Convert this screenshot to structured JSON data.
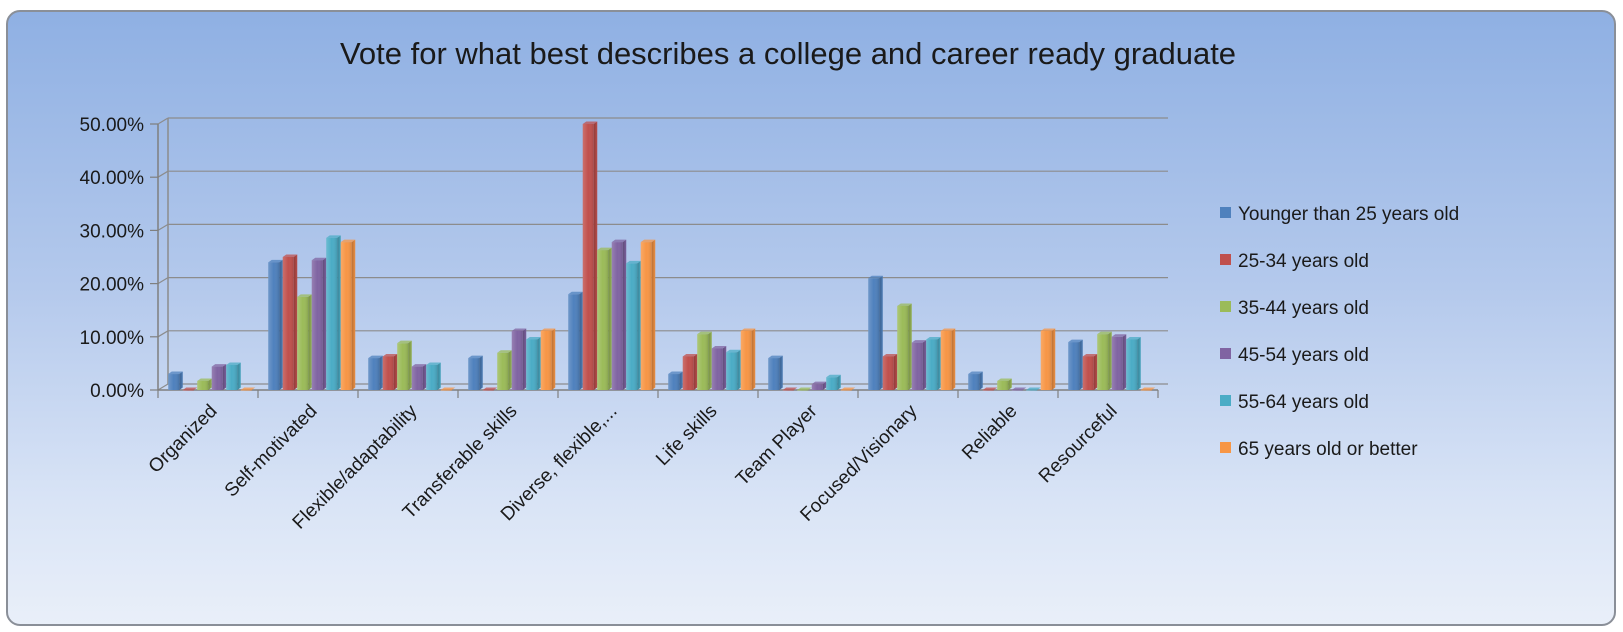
{
  "chart_data": {
    "type": "bar",
    "title": "Vote for what best describes a college and career ready graduate",
    "xlabel": "",
    "ylabel": "",
    "ylim": [
      0,
      0.5
    ],
    "yticks": [
      {
        "value": 0.0,
        "label": "0.00%"
      },
      {
        "value": 0.1,
        "label": "10.00%"
      },
      {
        "value": 0.2,
        "label": "20.00%"
      },
      {
        "value": 0.3,
        "label": "30.00%"
      },
      {
        "value": 0.4,
        "label": "40.00%"
      },
      {
        "value": 0.5,
        "label": "50.00%"
      }
    ],
    "grid": true,
    "legend_position": "right",
    "categories": [
      "Organized",
      "Self-motivated",
      "Flexible/adaptability",
      "Transferable skills",
      "Diverse, flexible,...",
      "Life skills",
      "Team Player",
      "Focused/Visionary",
      "Reliable",
      "Resourceful"
    ],
    "series": [
      {
        "name": "Younger than 25 years old",
        "color": "#4f81bd",
        "values": [
          0.03,
          0.24,
          0.06,
          0.06,
          0.18,
          0.03,
          0.06,
          0.21,
          0.03,
          0.09
        ]
      },
      {
        "name": "25-34 years old",
        "color": "#c0504d",
        "values": [
          0.0,
          0.25,
          0.063,
          0.0,
          0.5,
          0.063,
          0.0,
          0.063,
          0.0,
          0.063
        ]
      },
      {
        "name": "35-44 years old",
        "color": "#9bbb59",
        "values": [
          0.017,
          0.175,
          0.088,
          0.07,
          0.263,
          0.105,
          0.0,
          0.158,
          0.017,
          0.105
        ]
      },
      {
        "name": "45-54 years old",
        "color": "#8064a2",
        "values": [
          0.044,
          0.244,
          0.044,
          0.111,
          0.278,
          0.078,
          0.011,
          0.089,
          0.0,
          0.1
        ]
      },
      {
        "name": "55-64 years old",
        "color": "#4bacc6",
        "values": [
          0.047,
          0.286,
          0.047,
          0.095,
          0.238,
          0.071,
          0.024,
          0.095,
          0.0,
          0.095
        ]
      },
      {
        "name": "65 years old or better",
        "color": "#f79646",
        "values": [
          0.0,
          0.278,
          0.0,
          0.111,
          0.278,
          0.111,
          0.0,
          0.111,
          0.111,
          0.0
        ]
      }
    ]
  }
}
